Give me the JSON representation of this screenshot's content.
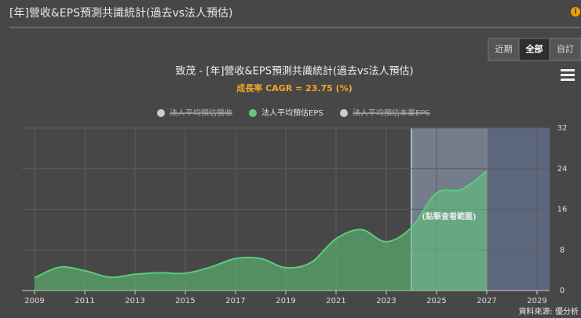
{
  "header": {
    "title": "[年]營收&EPS預測共識統計(過去vs法人預估)",
    "info": "i"
  },
  "buttons": [
    "近期",
    "全部",
    "自訂"
  ],
  "active_button": 1,
  "source": "資料來源: 優分析",
  "chart_data": {
    "type": "area",
    "title": "致茂 - [年]營收&EPS預測共識統計(過去vs法人預估)",
    "subtitle": "成長率 CAGR = 23.75 (%)",
    "x": [
      2009,
      2010,
      2011,
      2012,
      2013,
      2014,
      2015,
      2016,
      2017,
      2018,
      2019,
      2020,
      2021,
      2022,
      2023,
      2024,
      2025,
      2026,
      2027
    ],
    "series": [
      {
        "name": "法人平均預估營收",
        "color": "#cccccc",
        "visible": false
      },
      {
        "name": "法人平均預估EPS",
        "color": "#5ccb7a",
        "visible": true,
        "values": [
          2.5,
          4.6,
          3.9,
          2.6,
          3.2,
          3.5,
          3.4,
          4.6,
          6.3,
          6.3,
          4.5,
          5.5,
          10.2,
          12.0,
          9.6,
          12.4,
          19.2,
          19.9,
          23.5
        ]
      },
      {
        "name": "法人平均預估本業EPS",
        "color": "#cccccc",
        "visible": false
      }
    ],
    "plot_bands": [
      {
        "from": 2024,
        "to": 2027,
        "color": "rgba(170,190,225,0.45)",
        "label": "(點擊查看範圍)"
      },
      {
        "from": 2027,
        "to": 2029.5,
        "color": "rgba(110,130,170,0.55)"
      }
    ],
    "xlim": [
      2008.5,
      2029.5
    ],
    "xticks": [
      2009,
      2011,
      2013,
      2015,
      2017,
      2019,
      2021,
      2023,
      2025,
      2027,
      2029
    ],
    "ylim": [
      0,
      32
    ],
    "yticks": [
      0,
      8,
      16,
      24,
      32
    ],
    "grid": true,
    "y_axis_side": "right"
  }
}
